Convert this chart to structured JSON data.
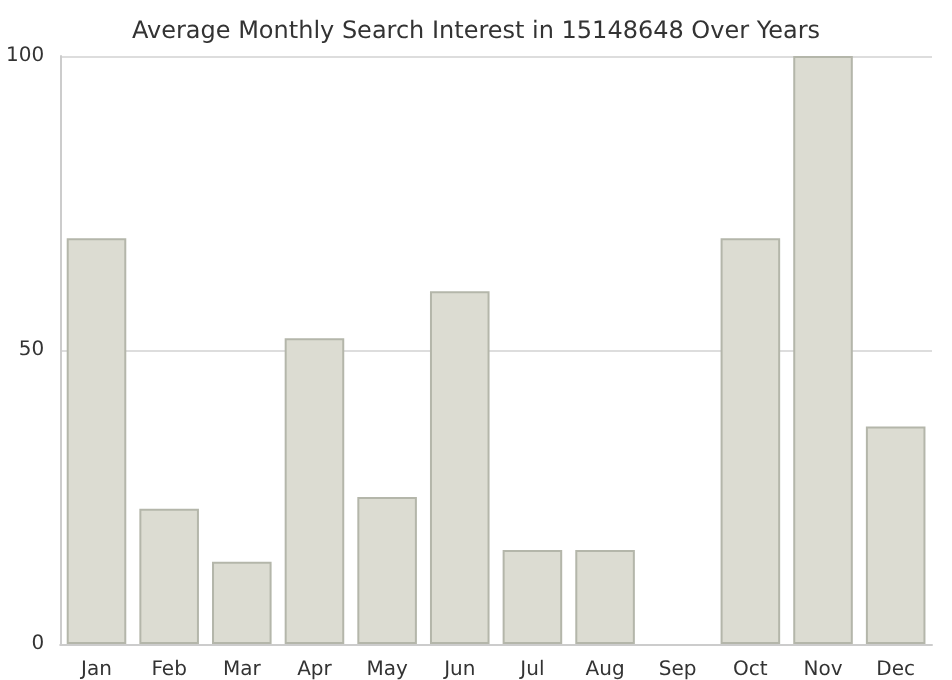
{
  "chart_data": {
    "type": "bar",
    "title": "Average Monthly Search Interest in 15148648 Over Years",
    "categories": [
      "Jan",
      "Feb",
      "Mar",
      "Apr",
      "May",
      "Jun",
      "Jul",
      "Aug",
      "Sep",
      "Oct",
      "Nov",
      "Dec"
    ],
    "values": [
      69,
      23,
      14,
      52,
      25,
      60,
      16,
      16,
      0,
      69,
      100,
      37
    ],
    "color": "#dcdcd2",
    "ylim": [
      0,
      100
    ],
    "yticks": [
      0,
      50,
      100
    ],
    "grid": "y"
  }
}
